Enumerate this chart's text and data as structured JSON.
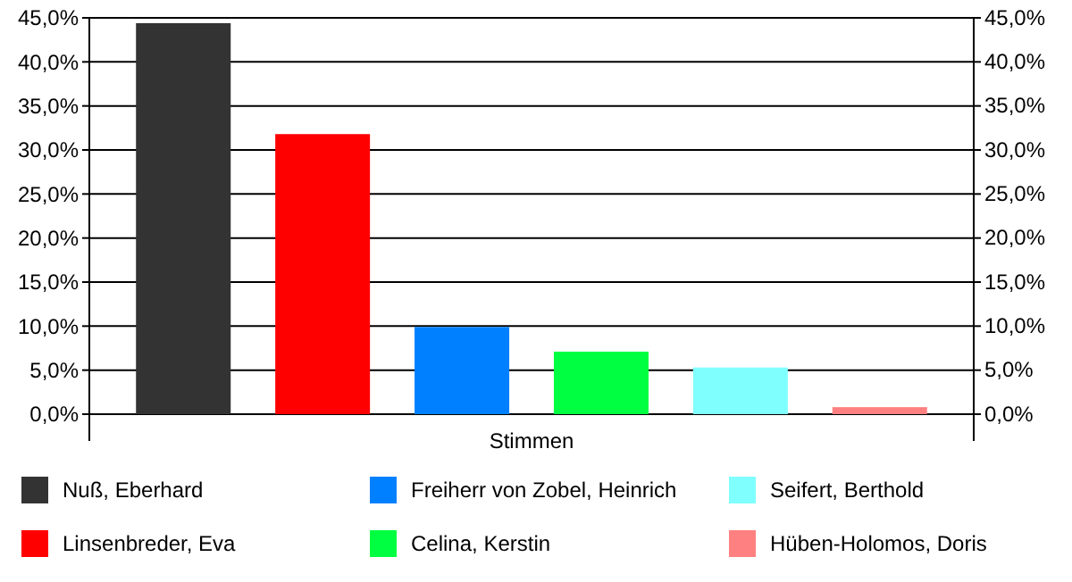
{
  "chart_data": {
    "type": "bar",
    "categories": [
      "Stimmen"
    ],
    "series": [
      {
        "name": "Nuß, Eberhard",
        "color": "#333333",
        "values": [
          44.4
        ]
      },
      {
        "name": "Linsenbreder, Eva",
        "color": "#ff0000",
        "values": [
          31.8
        ]
      },
      {
        "name": "Freiherr von Zobel, Heinrich",
        "color": "#0080ff",
        "values": [
          9.9
        ]
      },
      {
        "name": "Celina, Kerstin",
        "color": "#00ff40",
        "values": [
          7.1
        ]
      },
      {
        "name": "Seifert, Berthold",
        "color": "#80ffff",
        "values": [
          5.3
        ]
      },
      {
        "name": "Hüben-Holomos, Doris",
        "color": "#ff8080",
        "values": [
          0.8
        ]
      }
    ],
    "ylim": [
      0,
      45
    ],
    "yticks": [
      {
        "value": 0,
        "label": "0,0%"
      },
      {
        "value": 5,
        "label": "5,0%"
      },
      {
        "value": 10,
        "label": "10,0%"
      },
      {
        "value": 15,
        "label": "15,0%"
      },
      {
        "value": 20,
        "label": "20,0%"
      },
      {
        "value": 25,
        "label": "25,0%"
      },
      {
        "value": 30,
        "label": "30,0%"
      },
      {
        "value": 35,
        "label": "35,0%"
      },
      {
        "value": 40,
        "label": "40,0%"
      },
      {
        "value": 45,
        "label": "45,0%"
      }
    ],
    "grid": "y",
    "legend": "bottom"
  }
}
